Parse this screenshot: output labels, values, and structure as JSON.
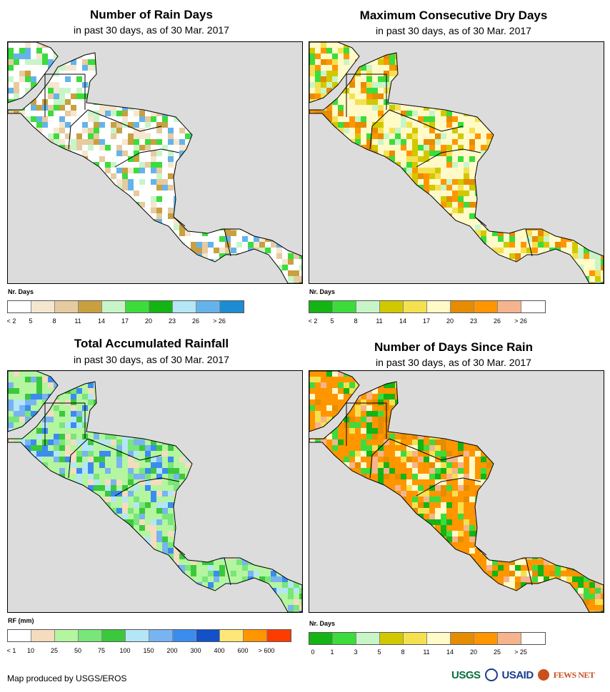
{
  "panels": [
    {
      "title": "Number of Rain Days",
      "subtitle": "in past 30 days, as of 30 Mar. 2017",
      "legend_label": "Nr. Days",
      "legend_colors": [
        "#ffffff",
        "#f5e6cf",
        "#e6cba0",
        "#c8a040",
        "#c8f5c8",
        "#3cdc3c",
        "#14b414",
        "#b4e6f5",
        "#64b4eb",
        "#1e8cd2"
      ],
      "legend_ticks": [
        "< 2",
        "5",
        "8",
        "11",
        "14",
        "17",
        "20",
        "23",
        "26",
        "> 26"
      ],
      "land_color": "#ffffff",
      "pixel_colors": [
        "#f5e6cf",
        "#e6cba0",
        "#c8a040",
        "#c8f5c8",
        "#3cdc3c",
        "#64b4eb"
      ]
    },
    {
      "title": "Maximum Consecutive Dry Days",
      "subtitle": "in past 30 days, as of 30 Mar. 2017",
      "legend_label": "Nr. Days",
      "legend_colors": [
        "#14b414",
        "#3cdc3c",
        "#c8f5c8",
        "#d2c800",
        "#f5e150",
        "#fffac8",
        "#e68c00",
        "#ff9600",
        "#f5b48c",
        "#ffffff"
      ],
      "legend_ticks": [
        "< 2",
        "5",
        "8",
        "11",
        "14",
        "17",
        "20",
        "23",
        "26",
        "> 26"
      ],
      "land_color": "#fffac8",
      "pixel_colors": [
        "#f5e150",
        "#d2c800",
        "#c8f5c8",
        "#e68c00",
        "#ff9600",
        "#3cdc3c"
      ]
    },
    {
      "title": "Total Accumulated Rainfall",
      "subtitle": "in past 30 days, as of 30 Mar. 2017",
      "legend_label": "RF (mm)",
      "legend_colors": [
        "#ffffff",
        "#f5dcbe",
        "#b4f5a0",
        "#78e678",
        "#3cc83c",
        "#b4e6f5",
        "#78b4f0",
        "#3c8cf0",
        "#1450c8",
        "#ffe678",
        "#ff9600",
        "#ff3c00"
      ],
      "legend_ticks": [
        "< 1",
        "10",
        "25",
        "50",
        "75",
        "100",
        "150",
        "200",
        "300",
        "400",
        "600",
        "> 600"
      ],
      "land_color": "#b4f5a0",
      "pixel_colors": [
        "#78e678",
        "#3cc83c",
        "#f5dcbe",
        "#b4e6f5",
        "#78b4f0",
        "#3c8cf0"
      ]
    },
    {
      "title": "Number of Days Since Rain",
      "subtitle": "in past 30 days, as of 30 Mar. 2017",
      "legend_label": "Nr. Days",
      "legend_colors": [
        "#14b414",
        "#3cdc3c",
        "#c8f5c8",
        "#d2c800",
        "#f5e150",
        "#fffac8",
        "#e68c00",
        "#ff9600",
        "#f5b48c",
        "#ffffff"
      ],
      "legend_ticks": [
        "0",
        "1",
        "3",
        "5",
        "8",
        "11",
        "14",
        "20",
        "25",
        "> 25"
      ],
      "land_color": "#ff9600",
      "pixel_colors": [
        "#e68c00",
        "#f5e150",
        "#fffac8",
        "#3cdc3c",
        "#14b414",
        "#f5b48c"
      ]
    }
  ],
  "credit": "Map produced by USGS/EROS",
  "logos": [
    "USGS",
    "USAID",
    "FEWS NET"
  ],
  "colors": {
    "ocean": "#dcdcdc",
    "border": "#000000"
  }
}
